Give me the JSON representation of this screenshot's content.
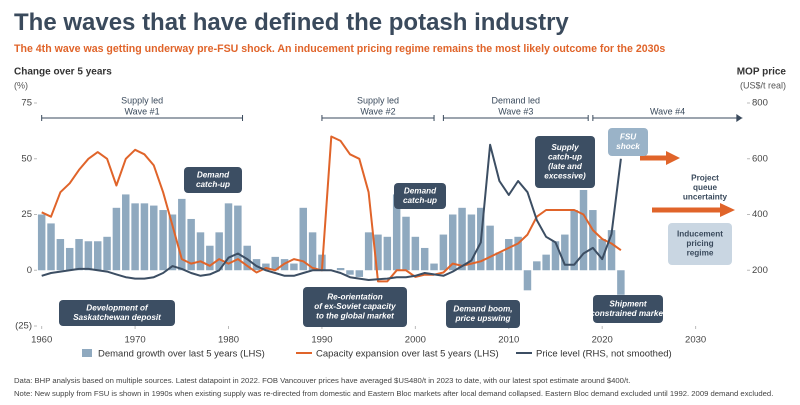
{
  "chart_data": {
    "type": "bar",
    "title": "The waves that have defined the potash industry",
    "subtitle": "The 4th wave was getting underway pre-FSU shock. An inducement pricing regime remains the most likely outcome for the 2030s",
    "ylabel": "Change over 5 years",
    "yunit": "(%)",
    "y2label": "MOP price",
    "y2unit": "(US$/t real)",
    "x": [
      1960,
      1961,
      1962,
      1963,
      1964,
      1965,
      1966,
      1967,
      1968,
      1969,
      1970,
      1971,
      1972,
      1973,
      1974,
      1975,
      1976,
      1977,
      1978,
      1979,
      1980,
      1981,
      1982,
      1983,
      1984,
      1985,
      1986,
      1987,
      1988,
      1989,
      1990,
      1991,
      1992,
      1993,
      1994,
      1995,
      1996,
      1997,
      1998,
      1999,
      2000,
      2001,
      2002,
      2003,
      2004,
      2005,
      2006,
      2007,
      2008,
      2009,
      2010,
      2011,
      2012,
      2013,
      2014,
      2015,
      2016,
      2017,
      2018,
      2019,
      2020,
      2021,
      2022
    ],
    "xlim": [
      1959.5,
      2035.5
    ],
    "xticks": [
      1960,
      1970,
      1980,
      1990,
      2000,
      2010,
      2020,
      2030
    ],
    "ylim": [
      -25,
      75
    ],
    "yticks": [
      {
        "value": -25,
        "label": "(25)"
      },
      0,
      25,
      50,
      75
    ],
    "y2lim": [
      0,
      800
    ],
    "y2ticks": [
      200,
      400,
      600,
      800
    ],
    "series": [
      {
        "name": "Demand growth over last 5 years (LHS)",
        "type": "bar",
        "color": "#8fa9bf",
        "values": [
          25,
          21,
          14,
          10,
          14,
          13,
          13,
          15,
          28,
          34,
          30,
          30,
          29,
          27,
          25,
          32,
          23,
          17,
          11,
          17,
          30,
          29,
          11,
          5,
          3,
          6,
          5,
          3,
          28,
          17,
          7,
          0,
          1,
          -2,
          -3,
          17,
          16,
          15,
          34,
          24,
          15,
          10,
          3,
          16,
          25,
          28,
          25,
          28,
          20,
          8,
          14,
          15,
          -9,
          4,
          7,
          13,
          16,
          27,
          36,
          27,
          14,
          18,
          -11
        ]
      },
      {
        "name": "Capacity expansion over last 5 years (LHS)",
        "type": "line",
        "color": "#e0642a",
        "values": [
          26,
          24,
          35,
          39,
          45,
          50,
          53,
          50,
          38,
          50,
          54,
          52,
          47,
          35,
          20,
          5,
          3,
          4,
          2,
          5,
          3,
          5,
          2,
          -1,
          1,
          0,
          3,
          5,
          4,
          1,
          0,
          60,
          58,
          52,
          50,
          35,
          -5,
          -5,
          0,
          0,
          -3,
          -2,
          -2,
          -1,
          3,
          2,
          3,
          4,
          6,
          8,
          10,
          12,
          16,
          24,
          27,
          27,
          27,
          27,
          25,
          18,
          14,
          12,
          9
        ]
      },
      {
        "name": "Price level (RHS, not smoothed)",
        "type": "line",
        "axis": "y2",
        "color": "#3c4e63",
        "values": [
          180,
          190,
          195,
          200,
          205,
          205,
          200,
          195,
          185,
          175,
          170,
          170,
          175,
          190,
          215,
          205,
          190,
          180,
          185,
          200,
          245,
          260,
          240,
          215,
          200,
          190,
          180,
          180,
          190,
          200,
          200,
          200,
          190,
          175,
          170,
          165,
          168,
          170,
          175,
          175,
          180,
          190,
          185,
          180,
          195,
          215,
          235,
          300,
          650,
          520,
          470,
          520,
          480,
          380,
          320,
          300,
          220,
          220,
          260,
          280,
          240,
          330,
          600
        ]
      }
    ],
    "grid": false,
    "waves": [
      {
        "lines": [
          "Supply led",
          "Wave #1"
        ]
      },
      {
        "lines": [
          "Supply led",
          "Wave #2"
        ]
      },
      {
        "lines": [
          "Demand led",
          "Wave #3"
        ]
      },
      {
        "lines": [
          "Wave #4"
        ]
      }
    ],
    "annotations": [
      {
        "lines": [
          "Demand",
          "catch-up"
        ]
      },
      {
        "lines": [
          "Demand",
          "catch-up"
        ]
      },
      {
        "lines": [
          "Supply",
          "catch-up",
          "(late and",
          "excessive)"
        ]
      },
      {
        "lines": [
          "FSU",
          "shock"
        ]
      },
      {
        "lines": [
          "Project",
          "queue",
          "uncertainty"
        ]
      },
      {
        "lines": [
          "Inducement",
          "pricing",
          "regime"
        ]
      },
      {
        "lines": [
          "Development of",
          "Saskatchewan deposit"
        ]
      },
      {
        "lines": [
          "Re-orientation",
          "of ex-Soviet capacity",
          "to the global market"
        ]
      },
      {
        "lines": [
          "Demand boom,",
          "price upswing"
        ]
      },
      {
        "lines": [
          "Shipment",
          "constrained market"
        ]
      }
    ],
    "notes": [
      "Data: BHP analysis based on multiple sources. Latest datapoint in 2022. FOB Vancouver prices have averaged $US480/t in 2023 to date, with our latest spot estimate around $400/t.",
      "Note: New supply from FSU is shown in 1990s when existing supply was re-directed from domestic and Eastern Bloc markets after local demand collapsed. Eastern Bloc demand excluded until 1992. 2009 demand excluded."
    ]
  }
}
